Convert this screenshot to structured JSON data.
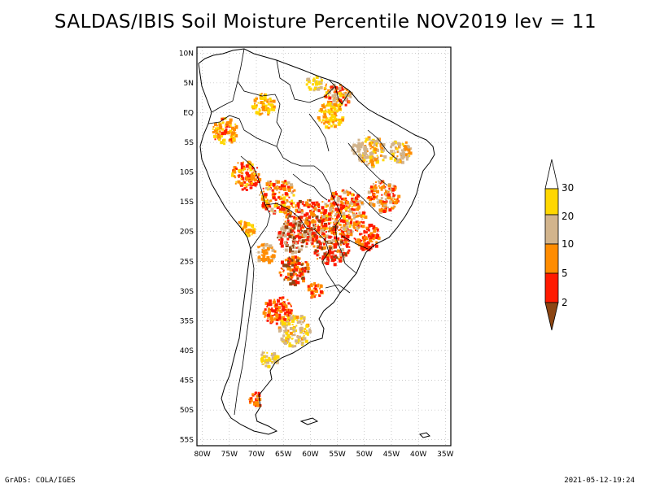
{
  "title": "SALDAS/IBIS Soil Moisture Percentile NOV2019 lev = 11",
  "footer": {
    "credit": "GrADS: COLA/IGES",
    "timestamp": "2021-05-12-19:24"
  },
  "axes": {
    "lat_labels": [
      "10N",
      "5N",
      "EQ",
      "5S",
      "10S",
      "15S",
      "20S",
      "25S",
      "30S",
      "35S",
      "40S",
      "45S",
      "50S",
      "55S"
    ],
    "lon_labels": [
      "80W",
      "75W",
      "70W",
      "65W",
      "60W",
      "55W",
      "50W",
      "45W",
      "40W",
      "35W"
    ],
    "lon_range": [
      -81,
      -34
    ],
    "lat_range": [
      -56,
      11
    ],
    "grid": true
  },
  "legend": {
    "labels": [
      "2",
      "5",
      "10",
      "20",
      "30"
    ],
    "colors": {
      "below_2": "#8b4513",
      "2_5": "#ff1a00",
      "5_10": "#ff8c00",
      "10_20": "#d2b48c",
      "20_30": "#ffd700",
      "above_30": "#ffffff"
    }
  },
  "colors": {
    "coastline": "#000000",
    "border": "#000000",
    "grid": "#aaaaaa"
  }
}
